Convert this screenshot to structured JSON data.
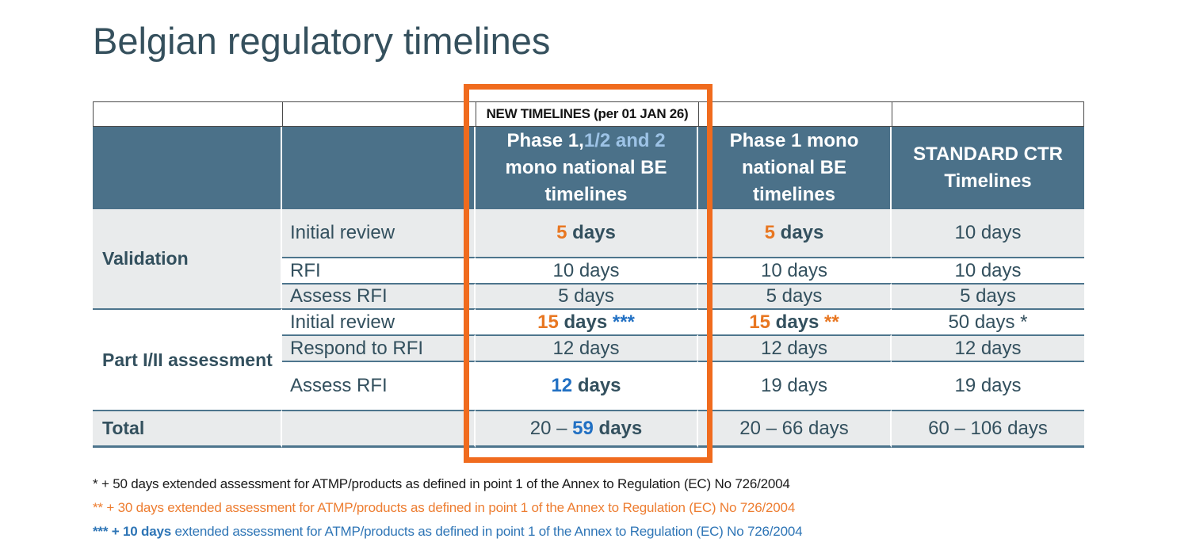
{
  "slide": {
    "title": "Belgian regulatory timelines"
  },
  "colors": {
    "ink": "#1a1a1a",
    "text": "#33505e",
    "orange": "#e87722",
    "footnote_orange": "#ed7d31",
    "blue": "#2170c3",
    "footnote_blue": "#2e75b6",
    "light_blue": "#9dc3e6",
    "header_bg": "#4b7189",
    "row_alt": "#e9ebec",
    "highlight": "#f06b1e"
  },
  "table": {
    "banner": "NEW TIMELINES (per 01 JAN 26)",
    "header_cells": [
      [
        {
          "t": "Phase 1,"
        },
        {
          "t": "1/2 and 2",
          "c": "light_blue"
        },
        {
          "t": " mono national BE timelines"
        }
      ],
      [
        {
          "t": "Phase 1 mono national BE timelines"
        }
      ],
      [
        {
          "t": "STANDARD CTR Timelines"
        }
      ]
    ],
    "groups": [
      "Validation",
      "Part I/II assessment"
    ],
    "rows": [
      {
        "label": "Initial review",
        "cells": [
          [
            {
              "t": "5",
              "b": 1,
              "c": "orange"
            },
            {
              "t": " days",
              "b": 1
            }
          ],
          [
            {
              "t": "5",
              "b": 1,
              "c": "orange"
            },
            {
              "t": " days",
              "b": 1
            }
          ],
          [
            {
              "t": "10 days"
            }
          ]
        ]
      },
      {
        "label": "RFI",
        "cells": [
          [
            {
              "t": "10 days"
            }
          ],
          [
            {
              "t": "10 days"
            }
          ],
          [
            {
              "t": "10 days"
            }
          ]
        ]
      },
      {
        "label": "Assess RFI",
        "cells": [
          [
            {
              "t": "5 days"
            }
          ],
          [
            {
              "t": "5 days"
            }
          ],
          [
            {
              "t": "5 days"
            }
          ]
        ]
      },
      {
        "label": "Initial review",
        "cells": [
          [
            {
              "t": "15",
              "b": 1,
              "c": "orange"
            },
            {
              "t": " days ",
              "b": 1
            },
            {
              "t": "***",
              "b": 1,
              "c": "blue"
            }
          ],
          [
            {
              "t": "15",
              "b": 1,
              "c": "orange"
            },
            {
              "t": " days ",
              "b": 1
            },
            {
              "t": "**",
              "b": 1,
              "c": "orange"
            }
          ],
          [
            {
              "t": "50 days *"
            }
          ]
        ]
      },
      {
        "label": "Respond to RFI",
        "cells": [
          [
            {
              "t": "12 days"
            }
          ],
          [
            {
              "t": "12 days"
            }
          ],
          [
            {
              "t": "12 days"
            }
          ]
        ]
      },
      {
        "label": "Assess RFI",
        "cells": [
          [
            {
              "t": "12",
              "b": 1,
              "c": "blue"
            },
            {
              "t": " days",
              "b": 1
            }
          ],
          [
            {
              "t": "19 days"
            }
          ],
          [
            {
              "t": "19 days"
            }
          ]
        ]
      }
    ],
    "total": {
      "label": "Total",
      "cells": [
        [
          {
            "t": "20 – "
          },
          {
            "t": "59",
            "b": 1,
            "c": "blue"
          },
          {
            "t": " days",
            "b": 1
          }
        ],
        [
          {
            "t": "20 – 66 days"
          }
        ],
        [
          {
            "t": "60 – 106 days"
          }
        ]
      ]
    }
  },
  "footnotes": [
    {
      "segments": [
        {
          "t": "* + 50 days extended assessment for ATMP/products as defined in point 1 of the Annex to Regulation (EC) No 726/2004",
          "c": "ink"
        }
      ]
    },
    {
      "segments": [
        {
          "t": "** + 30 days extended assessment for ATMP/products as defined in point 1 of the Annex to Regulation (EC) No 726/2004",
          "c": "footnote_orange"
        }
      ]
    },
    {
      "segments": [
        {
          "t": "*** + 10 days ",
          "b": 1,
          "c": "footnote_blue"
        },
        {
          "t": "extended assessment for ATMP/products as defined in point 1 of the Annex to Regulation (EC) No 726/2004",
          "c": "footnote_blue"
        }
      ]
    }
  ]
}
